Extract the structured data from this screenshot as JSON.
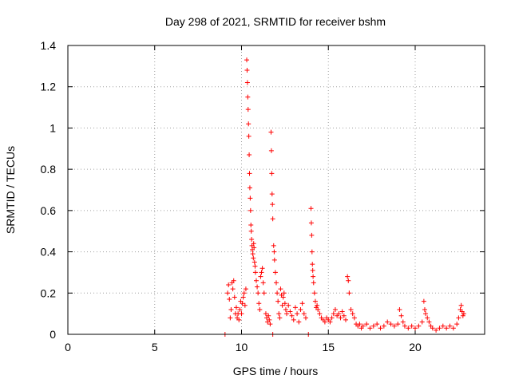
{
  "chart_data": {
    "type": "scatter",
    "title": "Day 298 of 2021, SRMTID for receiver bshm",
    "xlabel": "GPS time / hours",
    "ylabel": "SRMTID / TECUs",
    "xlim": [
      0,
      24
    ],
    "ylim": [
      0,
      1.4
    ],
    "xticks": [
      0,
      5,
      10,
      15,
      20
    ],
    "xtick_labels": [
      "0",
      "5",
      "10",
      "15",
      "20"
    ],
    "yticks": [
      0,
      0.2,
      0.4,
      0.6,
      0.8,
      1.0,
      1.2,
      1.4
    ],
    "ytick_labels": [
      "0",
      "0.2",
      "0.4",
      "0.6",
      "0.8",
      "1",
      "1.2",
      "1.4"
    ],
    "grid": true,
    "marker": "plus",
    "marker_color": "#ff0000",
    "series": [
      {
        "name": "SRMTID",
        "points": [
          [
            9.05,
            0.0
          ],
          [
            11.8,
            0.0
          ],
          [
            13.85,
            0.0
          ],
          [
            9.2,
            0.2
          ],
          [
            9.25,
            0.24
          ],
          [
            9.3,
            0.17
          ],
          [
            9.35,
            0.08
          ],
          [
            9.4,
            0.12
          ],
          [
            9.45,
            0.25
          ],
          [
            9.5,
            0.22
          ],
          [
            9.55,
            0.26
          ],
          [
            9.6,
            0.18
          ],
          [
            9.65,
            0.1
          ],
          [
            9.7,
            0.13
          ],
          [
            9.75,
            0.08
          ],
          [
            9.8,
            0.1
          ],
          [
            9.85,
            0.07
          ],
          [
            9.9,
            0.12
          ],
          [
            9.95,
            0.16
          ],
          [
            10.0,
            0.1
          ],
          [
            10.05,
            0.15
          ],
          [
            10.1,
            0.18
          ],
          [
            10.15,
            0.2
          ],
          [
            10.2,
            0.14
          ],
          [
            10.25,
            0.22
          ],
          [
            10.3,
            1.33
          ],
          [
            10.32,
            1.28
          ],
          [
            10.34,
            1.22
          ],
          [
            10.36,
            1.15
          ],
          [
            10.38,
            1.09
          ],
          [
            10.4,
            1.02
          ],
          [
            10.42,
            0.96
          ],
          [
            10.44,
            0.87
          ],
          [
            10.46,
            0.78
          ],
          [
            10.48,
            0.71
          ],
          [
            10.5,
            0.66
          ],
          [
            10.52,
            0.6
          ],
          [
            10.54,
            0.53
          ],
          [
            10.56,
            0.5
          ],
          [
            10.58,
            0.46
          ],
          [
            10.6,
            0.43
          ],
          [
            10.62,
            0.41
          ],
          [
            10.65,
            0.39
          ],
          [
            10.68,
            0.37
          ],
          [
            10.7,
            0.44
          ],
          [
            10.72,
            0.42
          ],
          [
            10.75,
            0.35
          ],
          [
            10.78,
            0.33
          ],
          [
            10.8,
            0.3
          ],
          [
            10.85,
            0.26
          ],
          [
            10.9,
            0.23
          ],
          [
            10.95,
            0.2
          ],
          [
            11.0,
            0.15
          ],
          [
            11.05,
            0.12
          ],
          [
            11.1,
            0.28
          ],
          [
            11.15,
            0.3
          ],
          [
            11.2,
            0.32
          ],
          [
            11.25,
            0.25
          ],
          [
            11.3,
            0.2
          ],
          [
            11.4,
            0.1
          ],
          [
            11.45,
            0.08
          ],
          [
            11.5,
            0.06
          ],
          [
            11.55,
            0.09
          ],
          [
            11.6,
            0.07
          ],
          [
            11.65,
            0.05
          ],
          [
            11.7,
            0.98
          ],
          [
            11.72,
            0.89
          ],
          [
            11.74,
            0.78
          ],
          [
            11.76,
            0.68
          ],
          [
            11.78,
            0.63
          ],
          [
            11.8,
            0.56
          ],
          [
            11.85,
            0.43
          ],
          [
            11.88,
            0.4
          ],
          [
            11.9,
            0.36
          ],
          [
            11.95,
            0.3
          ],
          [
            12.0,
            0.25
          ],
          [
            12.05,
            0.2
          ],
          [
            12.1,
            0.16
          ],
          [
            12.15,
            0.1
          ],
          [
            12.2,
            0.08
          ],
          [
            12.25,
            0.22
          ],
          [
            12.3,
            0.19
          ],
          [
            12.35,
            0.14
          ],
          [
            12.4,
            0.18
          ],
          [
            12.45,
            0.2
          ],
          [
            12.5,
            0.15
          ],
          [
            12.55,
            0.12
          ],
          [
            12.6,
            0.1
          ],
          [
            12.7,
            0.14
          ],
          [
            12.8,
            0.11
          ],
          [
            12.9,
            0.09
          ],
          [
            13.0,
            0.07
          ],
          [
            13.1,
            0.13
          ],
          [
            13.2,
            0.1
          ],
          [
            13.3,
            0.06
          ],
          [
            13.4,
            0.12
          ],
          [
            13.5,
            0.15
          ],
          [
            13.6,
            0.1
          ],
          [
            13.7,
            0.08
          ],
          [
            14.0,
            0.61
          ],
          [
            14.02,
            0.54
          ],
          [
            14.04,
            0.48
          ],
          [
            14.06,
            0.4
          ],
          [
            14.08,
            0.34
          ],
          [
            14.1,
            0.31
          ],
          [
            14.12,
            0.28
          ],
          [
            14.15,
            0.25
          ],
          [
            14.2,
            0.2
          ],
          [
            14.25,
            0.16
          ],
          [
            14.3,
            0.13
          ],
          [
            14.35,
            0.14
          ],
          [
            14.4,
            0.12
          ],
          [
            14.5,
            0.1
          ],
          [
            14.6,
            0.08
          ],
          [
            14.7,
            0.07
          ],
          [
            14.8,
            0.06
          ],
          [
            14.9,
            0.08
          ],
          [
            15.0,
            0.07
          ],
          [
            15.1,
            0.06
          ],
          [
            15.2,
            0.08
          ],
          [
            15.3,
            0.1
          ],
          [
            15.4,
            0.12
          ],
          [
            15.5,
            0.09
          ],
          [
            15.6,
            0.1
          ],
          [
            15.7,
            0.08
          ],
          [
            15.8,
            0.11
          ],
          [
            15.9,
            0.09
          ],
          [
            16.0,
            0.07
          ],
          [
            16.1,
            0.28
          ],
          [
            16.15,
            0.26
          ],
          [
            16.2,
            0.2
          ],
          [
            16.3,
            0.12
          ],
          [
            16.4,
            0.1
          ],
          [
            16.5,
            0.08
          ],
          [
            16.6,
            0.05
          ],
          [
            16.7,
            0.04
          ],
          [
            16.8,
            0.05
          ],
          [
            16.9,
            0.03
          ],
          [
            17.0,
            0.04
          ],
          [
            17.2,
            0.05
          ],
          [
            17.4,
            0.03
          ],
          [
            17.6,
            0.04
          ],
          [
            17.8,
            0.05
          ],
          [
            18.0,
            0.03
          ],
          [
            18.2,
            0.04
          ],
          [
            18.4,
            0.06
          ],
          [
            18.6,
            0.05
          ],
          [
            18.8,
            0.04
          ],
          [
            19.0,
            0.05
          ],
          [
            19.1,
            0.12
          ],
          [
            19.2,
            0.09
          ],
          [
            19.3,
            0.06
          ],
          [
            19.4,
            0.04
          ],
          [
            19.6,
            0.03
          ],
          [
            19.8,
            0.04
          ],
          [
            20.0,
            0.03
          ],
          [
            20.2,
            0.04
          ],
          [
            20.4,
            0.06
          ],
          [
            20.5,
            0.16
          ],
          [
            20.55,
            0.12
          ],
          [
            20.6,
            0.1
          ],
          [
            20.7,
            0.08
          ],
          [
            20.8,
            0.06
          ],
          [
            20.9,
            0.04
          ],
          [
            21.0,
            0.03
          ],
          [
            21.2,
            0.02
          ],
          [
            21.4,
            0.03
          ],
          [
            21.6,
            0.04
          ],
          [
            21.8,
            0.03
          ],
          [
            22.0,
            0.04
          ],
          [
            22.2,
            0.03
          ],
          [
            22.4,
            0.05
          ],
          [
            22.5,
            0.08
          ],
          [
            22.6,
            0.12
          ],
          [
            22.65,
            0.14
          ],
          [
            22.7,
            0.11
          ],
          [
            22.75,
            0.09
          ],
          [
            22.8,
            0.1
          ]
        ]
      }
    ]
  }
}
